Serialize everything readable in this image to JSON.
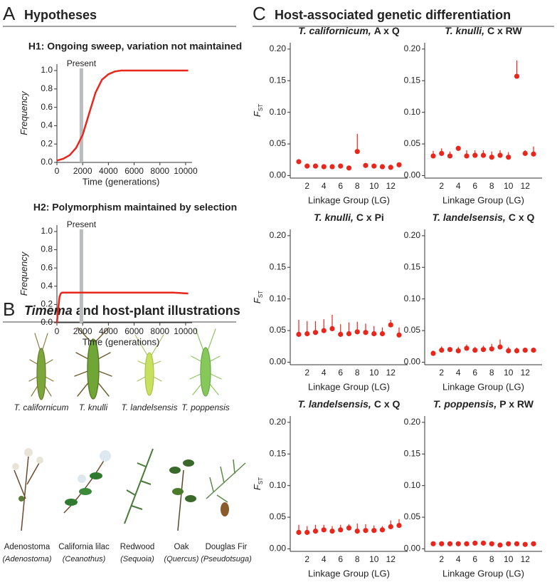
{
  "panels": [
    {
      "letter": "A",
      "title": "Hypotheses"
    },
    {
      "letter": "B",
      "title_italic": "Timema",
      "title": " and host-plant illustrations"
    },
    {
      "letter": "C",
      "title": "Host-associated genetic differentiation"
    }
  ],
  "insects": [
    "T. californicum",
    "T. knulli",
    "T. landelsensis",
    "T. poppensis"
  ],
  "plants": [
    {
      "name": "Adenostoma",
      "genus": "(Adenostoma)"
    },
    {
      "name": "California lilac",
      "genus": "(Ceanothus)"
    },
    {
      "name": "Redwood",
      "genus": "(Sequoia)"
    },
    {
      "name": "Oak",
      "genus": "(Quercus)"
    },
    {
      "name": "Douglas Fir",
      "genus": "(Pseudotsuga)"
    }
  ],
  "chart_data": [
    {
      "type": "line",
      "title": "H1: Ongoing sweep, variation not maintained",
      "xlabel": "Time (generations)",
      "ylabel": "Frequency",
      "x": [
        0,
        500,
        1000,
        1500,
        2000,
        2500,
        3000,
        3500,
        4000,
        4500,
        5000,
        5500,
        6000,
        6500,
        7000,
        7500,
        8000,
        8500,
        9000,
        9500,
        10200
      ],
      "values": [
        0.02,
        0.04,
        0.08,
        0.16,
        0.3,
        0.53,
        0.76,
        0.9,
        0.96,
        0.99,
        1.0,
        1.0,
        1.0,
        1.0,
        1.0,
        1.0,
        1.0,
        1.0,
        1.0,
        1.0,
        1.0
      ],
      "color": "#e8261c",
      "xlim": [
        0,
        10500
      ],
      "ylim": [
        0,
        1.07
      ],
      "xticks": [
        0,
        2000,
        4000,
        6000,
        8000,
        10000
      ],
      "yticks": [
        {
          "value": 0,
          "label": "0.0"
        },
        0.2,
        0.4,
        0.6,
        0.8,
        {
          "value": 1,
          "label": "1.0"
        }
      ],
      "annotation": {
        "text": "Present",
        "x": 1900,
        "color": "#b9bdbd"
      }
    },
    {
      "type": "line",
      "title": "H2: Polymorphism maintained by selection",
      "xlabel": "Time (generations)",
      "ylabel": "Frequency",
      "x": [
        0,
        100,
        200,
        300,
        400,
        500,
        1000,
        2000,
        3000,
        4000,
        5000,
        6000,
        7000,
        8000,
        9000,
        10200
      ],
      "values": [
        0,
        0.15,
        0.28,
        0.32,
        0.33,
        0.33,
        0.33,
        0.33,
        0.33,
        0.33,
        0.33,
        0.33,
        0.33,
        0.33,
        0.33,
        0.32
      ],
      "color": "#e8261c",
      "xlim": [
        0,
        10500
      ],
      "ylim": [
        0,
        1.07
      ],
      "xticks": [
        0,
        2000,
        4000,
        6000,
        8000,
        10000
      ],
      "yticks": [
        {
          "value": 0,
          "label": "0.0"
        },
        0.2,
        0.4,
        0.6,
        0.8,
        {
          "value": 1,
          "label": "1.0"
        }
      ],
      "annotation": {
        "text": "Present",
        "x": 1900,
        "color": "#b9bdbd"
      }
    },
    {
      "type": "dot",
      "title_species": "T. californicum,",
      "title_cross": "A x Q",
      "xlabel": "Linkage Group (LG)",
      "ylabel": "F",
      "ylabel_sub": "ST",
      "categories": [
        null,
        2,
        null,
        4,
        null,
        6,
        null,
        8,
        null,
        10,
        null,
        12,
        null
      ],
      "values": [
        0.022,
        0.015,
        0.015,
        0.014,
        0.014,
        0.015,
        0.012,
        0.038,
        0.016,
        0.015,
        0.014,
        0.013,
        0.017
      ],
      "errors": [
        0.002,
        0.002,
        0.002,
        0.002,
        0.002,
        0.002,
        0.002,
        0.028,
        0.002,
        0.002,
        0.002,
        0.002,
        0.002
      ],
      "color": "#e8261c",
      "ylim": [
        -0.004,
        0.21
      ],
      "yticks": [
        {
          "value": 0,
          "label": "0.00"
        },
        {
          "value": 0.05,
          "label": "0.05"
        },
        {
          "value": 0.1,
          "label": "0.10"
        },
        {
          "value": 0.15,
          "label": "0.15"
        },
        {
          "value": 0.2,
          "label": "0.20"
        }
      ]
    },
    {
      "type": "dot",
      "title_species": "T. knulli,",
      "title_cross": "C x RW",
      "xlabel": "Linkage Group (LG)",
      "categories": [
        null,
        2,
        null,
        4,
        null,
        6,
        null,
        8,
        null,
        10,
        null,
        12,
        null
      ],
      "values": [
        0.031,
        0.035,
        0.031,
        0.043,
        0.031,
        0.032,
        0.032,
        0.029,
        0.032,
        0.029,
        0.157,
        0.035,
        0.034
      ],
      "errors": [
        0.008,
        0.008,
        0.007,
        0.003,
        0.009,
        0.008,
        0.008,
        0.009,
        0.008,
        0.008,
        0.025,
        0.005,
        0.012
      ],
      "color": "#e8261c",
      "ylim": [
        -0.004,
        0.21
      ],
      "yticks": [
        {
          "value": 0,
          "label": "0.00"
        },
        {
          "value": 0.05,
          "label": "0.05"
        },
        {
          "value": 0.1,
          "label": "0.10"
        },
        {
          "value": 0.15,
          "label": "0.15"
        },
        {
          "value": 0.2,
          "label": "0.20"
        }
      ]
    },
    {
      "type": "dot",
      "title_species": "T. knulli,",
      "title_cross": "C x Pi",
      "xlabel": "Linkage Group (LG)",
      "ylabel": "F",
      "ylabel_sub": "ST",
      "categories": [
        null,
        2,
        null,
        4,
        null,
        6,
        null,
        8,
        null,
        10,
        null,
        12,
        null
      ],
      "values": [
        0.044,
        0.045,
        0.047,
        0.05,
        0.053,
        0.044,
        0.045,
        0.048,
        0.047,
        0.045,
        0.045,
        0.059,
        0.043
      ],
      "errors": [
        0.023,
        0.02,
        0.018,
        0.018,
        0.022,
        0.016,
        0.018,
        0.016,
        0.014,
        0.012,
        0.01,
        0.008,
        0.012
      ],
      "color": "#e8261c",
      "ylim": [
        -0.004,
        0.21
      ],
      "yticks": [
        {
          "value": 0,
          "label": "0.00"
        },
        {
          "value": 0.05,
          "label": "0.05"
        },
        {
          "value": 0.1,
          "label": "0.10"
        },
        {
          "value": 0.15,
          "label": "0.15"
        },
        {
          "value": 0.2,
          "label": "0.20"
        }
      ]
    },
    {
      "type": "dot",
      "title_species": "T. landelsensis,",
      "title_cross": "C x Q",
      "xlabel": "Linkage Group (LG)",
      "categories": [
        null,
        2,
        null,
        4,
        null,
        6,
        null,
        8,
        null,
        10,
        null,
        12,
        null
      ],
      "values": [
        0.014,
        0.019,
        0.02,
        0.018,
        0.022,
        0.019,
        0.02,
        0.021,
        0.024,
        0.018,
        0.018,
        0.019,
        0.019
      ],
      "errors": [
        0.004,
        0.006,
        0.004,
        0.006,
        0.006,
        0.005,
        0.006,
        0.008,
        0.012,
        0.006,
        0.005,
        0.004,
        0.004
      ],
      "color": "#e8261c",
      "ylim": [
        -0.004,
        0.21
      ],
      "yticks": [
        {
          "value": 0,
          "label": "0.00"
        },
        {
          "value": 0.05,
          "label": "0.05"
        },
        {
          "value": 0.1,
          "label": "0.10"
        },
        {
          "value": 0.15,
          "label": "0.15"
        },
        {
          "value": 0.2,
          "label": "0.20"
        }
      ]
    },
    {
      "type": "dot",
      "title_species": "T. landelsensis,",
      "title_cross": "C x Q",
      "xlabel": "Linkage Group (LG)",
      "ylabel": "F",
      "ylabel_sub": "ST",
      "categories": [
        null,
        2,
        null,
        4,
        null,
        6,
        null,
        8,
        null,
        10,
        null,
        12,
        null
      ],
      "values": [
        0.026,
        0.026,
        0.028,
        0.03,
        0.028,
        0.03,
        0.033,
        0.028,
        0.029,
        0.029,
        0.03,
        0.035,
        0.037
      ],
      "errors": [
        0.012,
        0.01,
        0.01,
        0.008,
        0.008,
        0.008,
        0.006,
        0.012,
        0.01,
        0.008,
        0.006,
        0.01,
        0.01
      ],
      "color": "#e8261c",
      "ylim": [
        -0.004,
        0.21
      ],
      "yticks": [
        {
          "value": 0,
          "label": "0.00"
        },
        {
          "value": 0.05,
          "label": "0.05"
        },
        {
          "value": 0.1,
          "label": "0.10"
        },
        {
          "value": 0.15,
          "label": "0.15"
        },
        {
          "value": 0.2,
          "label": "0.20"
        }
      ]
    },
    {
      "type": "dot",
      "title_species": "T. poppensis,",
      "title_cross": "P x RW",
      "xlabel": "Linkage Group (LG)",
      "categories": [
        null,
        2,
        null,
        4,
        null,
        6,
        null,
        8,
        null,
        10,
        null,
        12,
        null
      ],
      "values": [
        0.008,
        0.008,
        0.008,
        0.008,
        0.008,
        0.009,
        0.009,
        0.008,
        0.006,
        0.008,
        0.008,
        0.007,
        0.008
      ],
      "errors": [
        0.002,
        0.002,
        0.002,
        0.002,
        0.002,
        0.002,
        0.002,
        0.002,
        0.003,
        0.002,
        0.002,
        0.002,
        0.002
      ],
      "color": "#e8261c",
      "ylim": [
        -0.004,
        0.21
      ],
      "yticks": [
        {
          "value": 0,
          "label": "0.00"
        },
        {
          "value": 0.05,
          "label": "0.05"
        },
        {
          "value": 0.1,
          "label": "0.10"
        },
        {
          "value": 0.15,
          "label": "0.15"
        },
        {
          "value": 0.2,
          "label": "0.20"
        }
      ]
    }
  ]
}
